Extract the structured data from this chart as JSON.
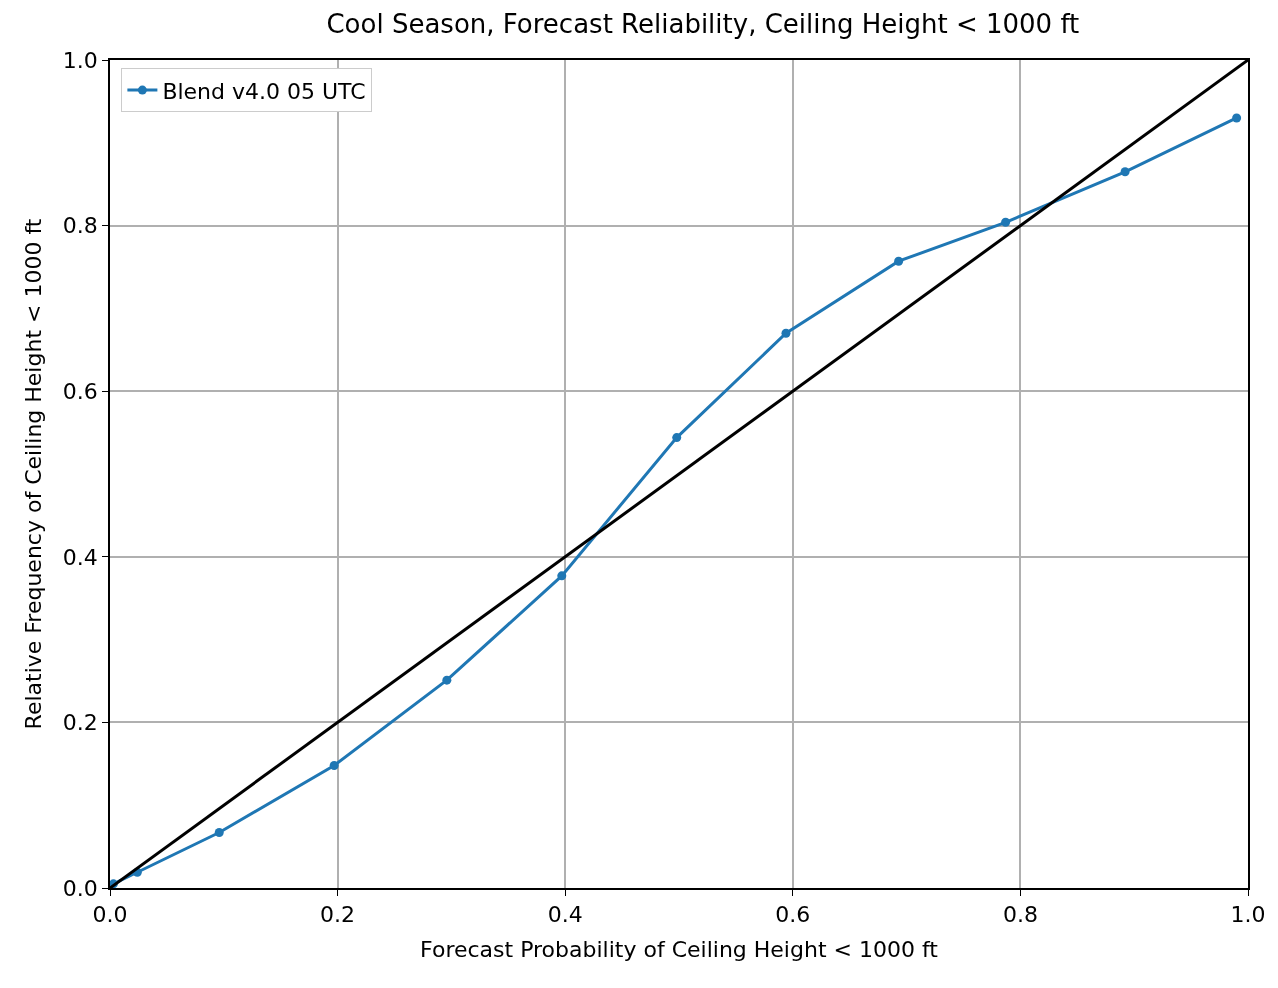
{
  "chart_data": {
    "type": "line",
    "title": "Cool Season, Forecast Reliability, Ceiling Height < 1000 ft",
    "xlabel": "Forecast Probability of Ceiling Height < 1000 ft",
    "ylabel": "Relative Frequency of Ceiling Height < 1000 ft",
    "series": [
      {
        "name": "Blend v4.0 05 UTC",
        "color": "#1f77b4",
        "marker": "circle",
        "x": [
          0.003,
          0.024,
          0.096,
          0.197,
          0.296,
          0.397,
          0.498,
          0.594,
          0.693,
          0.787,
          0.892,
          0.99
        ],
        "values": [
          0.005,
          0.019,
          0.067,
          0.148,
          0.251,
          0.377,
          0.544,
          0.67,
          0.757,
          0.804,
          0.865,
          0.93
        ]
      },
      {
        "color": "#000000",
        "marker": "none",
        "x": [
          0,
          1
        ],
        "values": [
          0,
          1
        ]
      }
    ],
    "xlim": [
      0,
      1
    ],
    "ylim": [
      0,
      1
    ],
    "xticks": [
      {
        "value": 0,
        "label": "0.0"
      },
      0.2,
      0.4,
      0.6,
      0.8,
      {
        "value": 1,
        "label": "1.0"
      }
    ],
    "yticks": [
      {
        "value": 0,
        "label": "0.0"
      },
      0.2,
      0.4,
      0.6,
      0.8,
      {
        "value": 1,
        "label": "1.0"
      }
    ],
    "grid": true,
    "legend": "top left"
  }
}
